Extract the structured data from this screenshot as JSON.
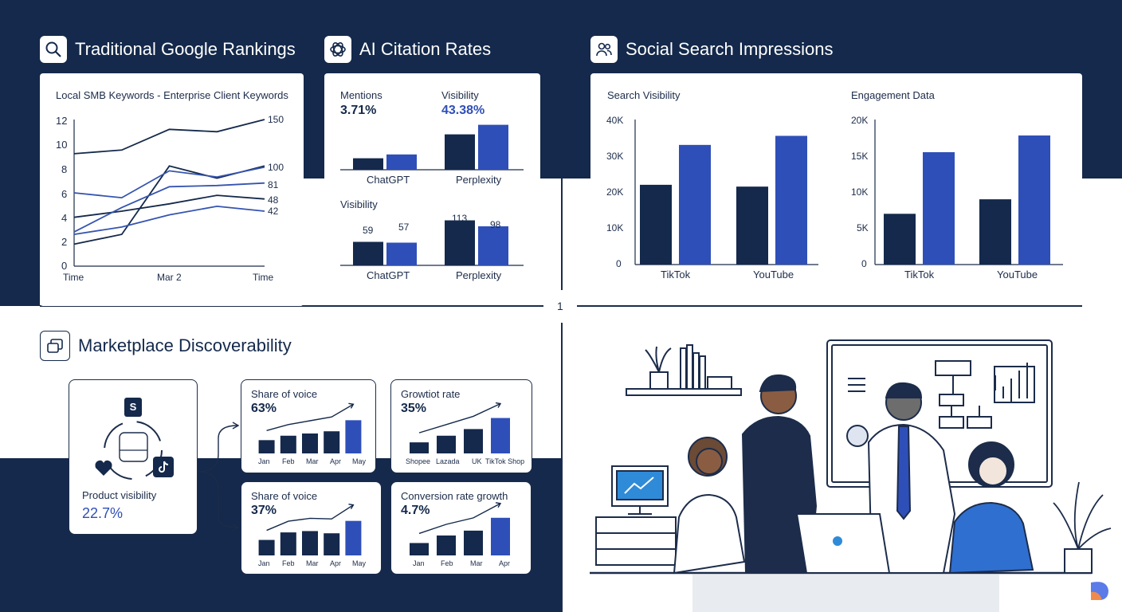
{
  "colors": {
    "navy": "#14294b",
    "bar_dark": "#14294b",
    "bar_blue": "#2f4fb8",
    "line_light": "#3554b0"
  },
  "sections": {
    "google": {
      "title": "Traditional Google Rankings",
      "icon": "search-icon"
    },
    "ai": {
      "title": "AI Citation Rates",
      "icon": "openai-logo-icon"
    },
    "social": {
      "title": "Social Search Impressions",
      "icon": "users-icon"
    },
    "marketplace": {
      "title": "Marketplace Discoverability",
      "icon": "marketplace-icon"
    }
  },
  "divider_label": "1",
  "google_chart": {
    "title": "Local SMB Keywords - Enterprise Client Keywords",
    "y_ticks": [
      "12",
      "10",
      "8",
      "6",
      "4",
      "2",
      "0"
    ],
    "x_ticks": [
      "Time",
      "Mar 2",
      "Time"
    ],
    "end_labels": [
      "150",
      "100",
      "81",
      "48",
      "42"
    ]
  },
  "ai_panel": {
    "mentions_label": "Mentions",
    "mentions_value": "3.71%",
    "visibility_label": "Visibility",
    "visibility_value": "43.38%",
    "bottom_label": "Visibility",
    "categories": [
      "ChatGPT",
      "Perplexity"
    ],
    "bottom_values": [
      "59",
      "57",
      "113",
      "98"
    ]
  },
  "social_panel": {
    "left_title": "Search Visibility",
    "left_ticks": [
      "40K",
      "30K",
      "20K",
      "10K",
      "0"
    ],
    "right_title": "Engagement Data",
    "right_ticks": [
      "20K",
      "15K",
      "10K",
      "5K",
      "0"
    ],
    "categories": [
      "TikTok",
      "YouTube"
    ]
  },
  "marketplace": {
    "product_label": "Product visibility",
    "product_value": "22.7%",
    "cards": [
      {
        "title": "Share of voice",
        "value": "63%",
        "x": [
          "Jan",
          "Feb",
          "Mar",
          "Apr",
          "May"
        ]
      },
      {
        "title": "Growtiot rate",
        "value": "35%",
        "x": [
          "Shopee",
          "Lazada",
          "UK",
          "TikTok Shop"
        ]
      },
      {
        "title": "Share of voice",
        "value": "37%",
        "x": [
          "Jan",
          "Feb",
          "Mar",
          "Apr",
          "May"
        ]
      },
      {
        "title": "Conversion rate growth",
        "value": "4.7%",
        "x": [
          "Jan",
          "Feb",
          "Mar",
          "Apr"
        ]
      }
    ]
  },
  "chart_data": [
    {
      "type": "line",
      "title": "Local SMB Keywords - Enterprise Client Keywords",
      "x": [
        "Time",
        "",
        "Mar 2",
        "",
        "Time"
      ],
      "ylim": [
        0,
        12
      ],
      "series": [
        {
          "values": [
            9.2,
            9.5,
            11.2,
            11.0,
            12.0
          ]
        },
        {
          "values": [
            1.8,
            2.6,
            8.2,
            7.2,
            8.2
          ]
        },
        {
          "values": [
            6.0,
            5.6,
            7.8,
            7.3,
            8.1
          ]
        },
        {
          "values": [
            4.0,
            4.5,
            5.1,
            5.8,
            5.5
          ]
        },
        {
          "values": [
            2.8,
            4.8,
            6.5,
            6.6,
            6.8
          ]
        },
        {
          "values": [
            2.6,
            3.2,
            4.2,
            4.9,
            4.5
          ]
        }
      ]
    },
    {
      "type": "bar",
      "title": "Mentions",
      "categories": [
        "ChatGPT",
        "Perplexity"
      ],
      "series": [
        {
          "values": [
            12,
            37
          ]
        },
        {
          "values": [
            16,
            47
          ]
        }
      ]
    },
    {
      "type": "bar",
      "title": "Visibility",
      "categories": [
        "ChatGPT",
        "Perplexity"
      ],
      "series": [
        {
          "values": [
            59,
            113
          ]
        },
        {
          "values": [
            57,
            98
          ]
        }
      ]
    },
    {
      "type": "bar",
      "title": "Search Visibility",
      "categories": [
        "TikTok",
        "YouTube"
      ],
      "ylim": [
        0,
        40000
      ],
      "series": [
        {
          "values": [
            22000,
            21500
          ]
        },
        {
          "values": [
            33000,
            35500
          ]
        }
      ]
    },
    {
      "type": "bar",
      "title": "Engagement Data",
      "categories": [
        "TikTok",
        "YouTube"
      ],
      "ylim": [
        0,
        20000
      ],
      "series": [
        {
          "values": [
            7000,
            9000
          ]
        },
        {
          "values": [
            15500,
            17800
          ]
        }
      ]
    },
    {
      "type": "bar",
      "title": "Share of voice",
      "categories": [
        "Jan",
        "Feb",
        "Mar",
        "Apr",
        "May"
      ],
      "values": [
        3,
        4,
        4.5,
        5,
        7.5
      ]
    },
    {
      "type": "bar",
      "title": "Growtiot rate",
      "categories": [
        "Shopee",
        "Lazada",
        "UK",
        "TikTok Shop"
      ],
      "values": [
        2.5,
        4,
        5.5,
        8
      ]
    },
    {
      "type": "bar",
      "title": "Share of voice",
      "categories": [
        "Jan",
        "Feb",
        "Mar",
        "Apr",
        "May"
      ],
      "values": [
        3.5,
        5.2,
        5.5,
        5,
        7.8
      ]
    },
    {
      "type": "bar",
      "title": "Conversion rate growth",
      "categories": [
        "Jan",
        "Feb",
        "Mar",
        "Apr"
      ],
      "values": [
        2.8,
        4.5,
        5.6,
        8.5
      ]
    }
  ]
}
